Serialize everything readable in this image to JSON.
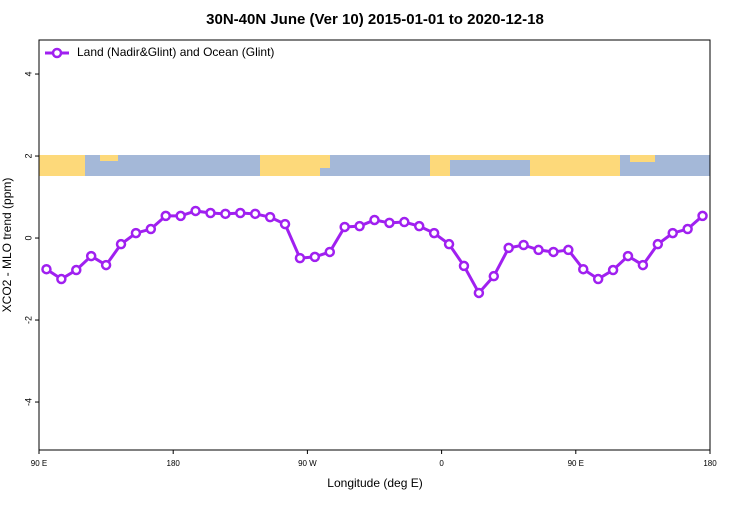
{
  "chart_data": {
    "type": "line",
    "title": "30N-40N June (Ver 10)   2015-01-01 to 2020-12-18",
    "xlabel": "Longitude (deg E)",
    "ylabel": "XCO2 - MLO trend (ppm)",
    "x": [
      95,
      105,
      115,
      125,
      135,
      145,
      155,
      165,
      175,
      185,
      195,
      205,
      215,
      225,
      235,
      245,
      255,
      265,
      275,
      285,
      295,
      305,
      315,
      325,
      335,
      345,
      355,
      365,
      375,
      385,
      395,
      405,
      415,
      425,
      435,
      445,
      455,
      465,
      475,
      485,
      495,
      505,
      515,
      525,
      535
    ],
    "series": [
      {
        "name": "Land (Nadir&Glint) and Ocean (Glint)",
        "color": "#a020f0",
        "values": [
          -0.76,
          -1.0,
          -0.78,
          -0.44,
          -0.66,
          -0.15,
          0.12,
          0.22,
          0.54,
          0.54,
          0.66,
          0.61,
          0.59,
          0.61,
          0.59,
          0.51,
          0.34,
          -0.49,
          -0.46,
          -0.34,
          0.27,
          0.29,
          0.44,
          0.37,
          0.39,
          0.29,
          0.12,
          -0.15,
          -0.68,
          -1.34,
          -0.93,
          -0.24,
          -0.17,
          -0.29,
          -0.34,
          -0.29,
          -0.76,
          -1.0,
          -0.78,
          -0.44,
          -0.66,
          -0.15,
          0.12,
          0.22,
          0.54
        ]
      }
    ],
    "xlim": [
      90,
      540
    ],
    "xticks": [
      {
        "value": 90,
        "label": "90 E"
      },
      180,
      {
        "value": 270,
        "label": "90 W"
      },
      {
        "value": 360,
        "label": "0"
      },
      {
        "value": 450,
        "label": "90 E"
      },
      {
        "value": 540,
        "label": "180"
      }
    ],
    "ylim": [
      -5.17,
      4.83
    ],
    "yticks": [
      -4,
      -2,
      0,
      2,
      4
    ],
    "legend": "top-left"
  }
}
